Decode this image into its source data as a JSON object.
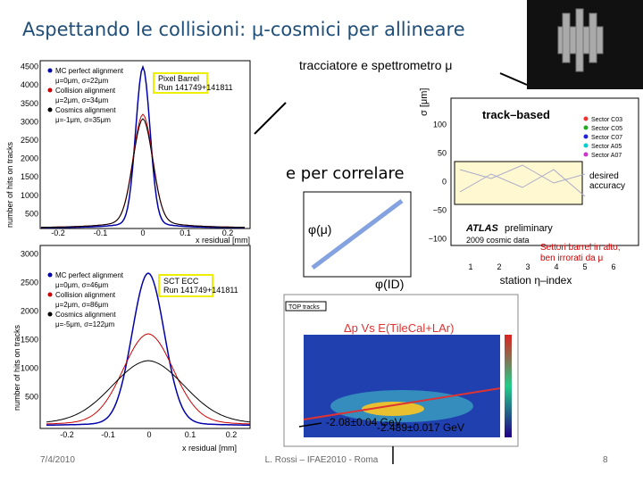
{
  "header": {
    "title": "Aspettando le collisioni: μ-cosmici per allineare"
  },
  "annotations": {
    "spectrometer": "tracciatore e spettrometro μ",
    "correlate": "e per correlare",
    "phi_mu": "φ(μ)",
    "phi_id": "φ(ID)",
    "sectors": [
      "Settori barrel in alto,",
      "ben irrorati da μ"
    ],
    "fit1": "-2.08±0.04 GeV",
    "fit2": "-2.489±0.017 GeV"
  },
  "pixel_plot": {
    "ylabel": "number of hits on tracks",
    "xlabel": "x residual [mm]",
    "yticks": [
      "500",
      "1000",
      "1500",
      "2000",
      "2500",
      "3000",
      "3500",
      "4000",
      "4500"
    ],
    "xticks": [
      "-0.2",
      "-0.1",
      "0",
      "0.1",
      "0.2"
    ],
    "legend": [
      "MC perfect alignment",
      "μ=0μm, σ=22μm",
      "Collision alignment",
      "μ=2μm, σ=34μm",
      "Cosmics alignment",
      "μ=-1μm, σ=35μm"
    ],
    "box": [
      "Pixel Barrel",
      "Run 141749+141811"
    ]
  },
  "sct_plot": {
    "ylabel": "number of hits on tracks",
    "xlabel": "x residual [mm]",
    "yticks": [
      "500",
      "1000",
      "1500",
      "2000",
      "2500",
      "3000"
    ],
    "xticks": [
      "-0.2",
      "-0.1",
      "0",
      "0.1",
      "0.2"
    ],
    "legend": [
      "MC perfect alignment",
      "μ=0μm, σ=46μm",
      "Collision alignment",
      "μ=2μm, σ=86μm",
      "Cosmics alignment",
      "μ=-5μm, σ=122μm"
    ],
    "box": [
      "SCT ECC",
      "Run 141749+141811"
    ]
  },
  "track_plot": {
    "title": "track–based",
    "ylabel": "σ [μm]",
    "yticks": [
      "100",
      "50",
      "0",
      "−50",
      "−100"
    ],
    "xticks": [
      "1",
      "2",
      "3",
      "4",
      "5",
      "6"
    ],
    "xlabel": "station η–index",
    "legend": [
      "Sector C03",
      "Sector C05",
      "Sector C07",
      "Sector A05",
      "Sector A07"
    ],
    "accuracy": [
      "desired",
      "accuracy"
    ],
    "atlas": "ATLAS",
    "preliminary": "preliminary",
    "data": "2009 cosmic data"
  },
  "hist_plot": {
    "title": "Δp Vs E(TileCal+LAr)",
    "legend": "TOP tracks"
  },
  "footer": {
    "date": "7/4/2010",
    "author": "L. Rossi – IFAE2010 - Roma",
    "page": "8"
  }
}
